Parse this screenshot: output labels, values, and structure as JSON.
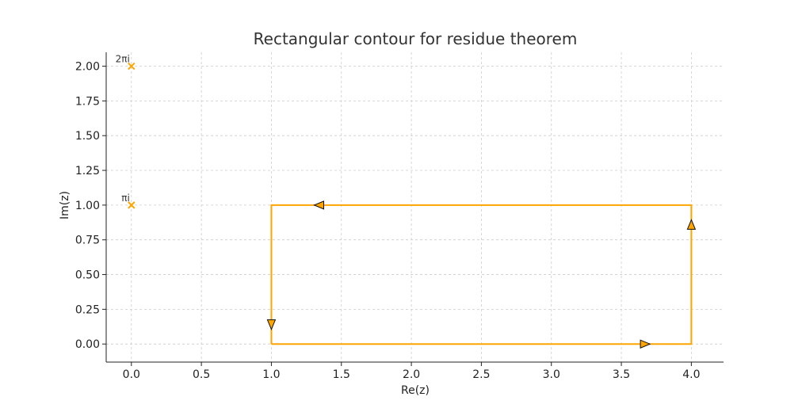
{
  "chart_data": {
    "type": "line",
    "title": "Rectangular contour for residue theorem",
    "xlabel": "Re(z)",
    "ylabel": "Im(z)",
    "xlim": [
      -0.18,
      4.23
    ],
    "ylim": [
      -0.13,
      2.1
    ],
    "xticks": [
      0.0,
      0.5,
      1.0,
      1.5,
      2.0,
      2.5,
      3.0,
      3.5,
      4.0
    ],
    "xtick_labels": [
      "0.0",
      "0.5",
      "1.0",
      "1.5",
      "2.0",
      "2.5",
      "3.0",
      "3.5",
      "4.0"
    ],
    "yticks": [
      0.0,
      0.25,
      0.5,
      0.75,
      1.0,
      1.25,
      1.5,
      1.75,
      2.0
    ],
    "ytick_labels": [
      "0.00",
      "0.25",
      "0.50",
      "0.75",
      "1.00",
      "1.25",
      "1.50",
      "1.75",
      "2.00"
    ],
    "grid": true,
    "contour": {
      "color": "#FFA500",
      "path": [
        [
          1,
          0
        ],
        [
          4,
          0
        ],
        [
          4,
          1
        ],
        [
          1,
          1
        ],
        [
          1,
          0
        ]
      ]
    },
    "arrows": [
      {
        "x": 3.67,
        "y": 0.0,
        "direction": "right"
      },
      {
        "x": 4.0,
        "y": 0.86,
        "direction": "up"
      },
      {
        "x": 1.34,
        "y": 1.0,
        "direction": "left"
      },
      {
        "x": 1.0,
        "y": 0.14,
        "direction": "down"
      }
    ],
    "poles": [
      {
        "x": 0.0,
        "y": 1.0,
        "label": "πi"
      },
      {
        "x": 0.0,
        "y": 2.0,
        "label": "2πi"
      }
    ],
    "pole_color": "#FFA500"
  }
}
